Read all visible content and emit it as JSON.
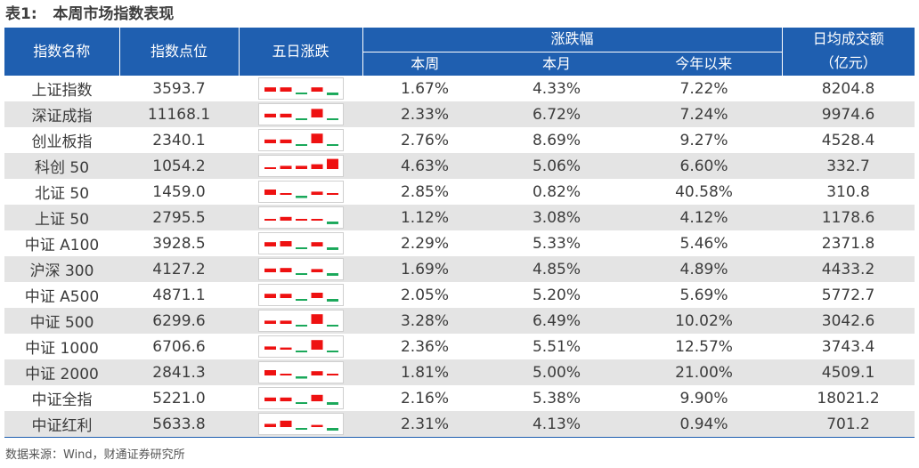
{
  "title": "表1:   本周市场指数表现",
  "headers": {
    "name": "指数名称",
    "level": "指数点位",
    "five_day": "五日涨跌",
    "change": "涨跌幅",
    "week": "本周",
    "month": "本月",
    "ytd": "今年以来",
    "turnover_line1": "日均成交额",
    "turnover_line2": "（亿元）"
  },
  "colors": {
    "up": "#ee1111",
    "down": "#1aa85a",
    "header_bg": "#1f5fb0",
    "stripe": "#e4e4e4"
  },
  "rows": [
    {
      "name": "上证指数",
      "level": "3593.7",
      "week": "1.67%",
      "month": "4.33%",
      "ytd": "7.22%",
      "turnover": "8204.8",
      "five_day": [
        0.4,
        0.4,
        -0.1,
        0.4,
        -0.35
      ]
    },
    {
      "name": "深证成指",
      "level": "11168.1",
      "week": "2.33%",
      "month": "6.72%",
      "ytd": "7.24%",
      "turnover": "9974.6",
      "five_day": [
        0.35,
        0.35,
        -0.1,
        0.8,
        -0.1
      ]
    },
    {
      "name": "创业板指",
      "level": "2340.1",
      "week": "2.76%",
      "month": "8.69%",
      "ytd": "9.27%",
      "turnover": "4528.4",
      "five_day": [
        0.35,
        0.35,
        -0.1,
        0.9,
        -0.1
      ]
    },
    {
      "name": "科创 50",
      "level": "1054.2",
      "week": "4.63%",
      "month": "5.06%",
      "ytd": "6.60%",
      "turnover": "332.7",
      "five_day": [
        0.1,
        0.3,
        0.3,
        0.45,
        0.95
      ]
    },
    {
      "name": "北证 50",
      "level": "1459.0",
      "week": "2.85%",
      "month": "0.82%",
      "ytd": "40.58%",
      "turnover": "310.8",
      "five_day": [
        0.5,
        0.1,
        -0.3,
        0.3,
        0.1
      ]
    },
    {
      "name": "上证 50",
      "level": "2795.5",
      "week": "1.12%",
      "month": "3.08%",
      "ytd": "4.12%",
      "turnover": "1178.6",
      "five_day": [
        0.1,
        0.35,
        0.15,
        0.1,
        -0.35
      ]
    },
    {
      "name": "中证 A100",
      "level": "3928.5",
      "week": "2.29%",
      "month": "5.33%",
      "ytd": "5.46%",
      "turnover": "2371.8",
      "five_day": [
        0.4,
        0.5,
        -0.1,
        0.4,
        -0.35
      ]
    },
    {
      "name": "沪深 300",
      "level": "4127.2",
      "week": "1.69%",
      "month": "4.85%",
      "ytd": "4.89%",
      "turnover": "4433.2",
      "five_day": [
        0.35,
        0.4,
        -0.1,
        0.3,
        -0.35
      ]
    },
    {
      "name": "中证 A500",
      "level": "4871.1",
      "week": "2.05%",
      "month": "5.20%",
      "ytd": "5.69%",
      "turnover": "5772.7",
      "five_day": [
        0.4,
        0.4,
        -0.1,
        0.5,
        -0.35
      ]
    },
    {
      "name": "中证 500",
      "level": "6299.6",
      "week": "3.28%",
      "month": "6.49%",
      "ytd": "10.02%",
      "turnover": "3042.6",
      "five_day": [
        0.3,
        0.3,
        -0.1,
        0.9,
        -0.1
      ]
    },
    {
      "name": "中证 1000",
      "level": "6706.6",
      "week": "2.36%",
      "month": "5.51%",
      "ytd": "12.57%",
      "turnover": "3743.4",
      "five_day": [
        0.3,
        0.2,
        -0.1,
        0.9,
        -0.1
      ]
    },
    {
      "name": "中证 2000",
      "level": "2841.3",
      "week": "1.81%",
      "month": "5.00%",
      "ytd": "21.00%",
      "turnover": "4509.1",
      "five_day": [
        0.5,
        0.1,
        -0.3,
        0.4,
        0.1
      ]
    },
    {
      "name": "中证全指",
      "level": "5221.0",
      "week": "2.16%",
      "month": "5.38%",
      "ytd": "9.90%",
      "turnover": "18021.2",
      "five_day": [
        0.35,
        0.35,
        -0.1,
        0.6,
        -0.35
      ]
    },
    {
      "name": "中证红利",
      "level": "5633.8",
      "week": "2.31%",
      "month": "4.13%",
      "ytd": "0.94%",
      "turnover": "701.2",
      "five_day": [
        0.3,
        0.6,
        -0.1,
        0.2,
        -0.35
      ]
    }
  ],
  "source": "数据来源：Wind，财通证券研究所"
}
